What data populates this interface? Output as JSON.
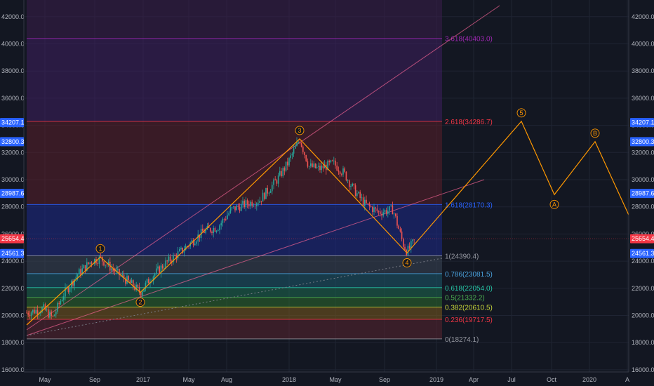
{
  "chart_data": {
    "type": "candlestick",
    "price_axis": {
      "min": 16000,
      "max": 43000,
      "step": 2000,
      "tick_labels": [
        "16000.0",
        "18000.0",
        "20000.0",
        "22000.0",
        "24000.0",
        "26000.0",
        "28000.0",
        "30000.0",
        "32000.0",
        "34000.0",
        "36000.0",
        "38000.0",
        "40000.0",
        "42000.0"
      ]
    },
    "time_axis": {
      "tick_labels": [
        "May",
        "Sep",
        "2017",
        "May",
        "Aug",
        "2018",
        "May",
        "Sep",
        "2019",
        "Apr",
        "Jul",
        "Oct",
        "2020",
        "A"
      ]
    },
    "fib_levels": [
      {
        "ratio": "0",
        "price": 18274.1,
        "label": "0(18274.1)",
        "color": "#9598a1",
        "fill": "#5a2430"
      },
      {
        "ratio": "0.236",
        "price": 19717.5,
        "label": "0.236(19717.5)",
        "color": "#f23645",
        "fill": "#7a5a1e"
      },
      {
        "ratio": "0.382",
        "price": 20610.5,
        "label": "0.382(20610.5)",
        "color": "#c8d63a",
        "fill": "#2e6b2e"
      },
      {
        "ratio": "0.5",
        "price": 21332.2,
        "label": "0.5(21332.2)",
        "color": "#4caf50",
        "fill": "#1d6b50"
      },
      {
        "ratio": "0.618",
        "price": 22054.0,
        "label": "0.618(22054.0)",
        "color": "#26c6a6",
        "fill": "#1e5a6b"
      },
      {
        "ratio": "0.786",
        "price": 23081.5,
        "label": "0.786(23081.5)",
        "color": "#4aa3df",
        "fill": "#3a4555"
      },
      {
        "ratio": "1",
        "price": 24390.4,
        "label": "1(24390.4)",
        "color": "#9598a1",
        "fill": "#1e2a8a"
      },
      {
        "ratio": "1.618",
        "price": 28170.3,
        "label": "1.618(28170.3)",
        "color": "#2962ff",
        "fill": "#5a1f2a"
      },
      {
        "ratio": "2.618",
        "price": 34286.7,
        "label": "2.618(34286.7)",
        "color": "#f23645",
        "fill": "#3e1f5e"
      },
      {
        "ratio": "3.618",
        "price": 40403.0,
        "label": "3.618(40403.0)",
        "color": "#9c27b0",
        "fill": "#3b1e4a"
      }
    ],
    "price_tags": [
      {
        "label": "34207.1",
        "price": 34207.1,
        "color": "#2962ff"
      },
      {
        "label": "32800.3",
        "price": 32800.3,
        "color": "#2962ff"
      },
      {
        "label": "28987.6",
        "price": 28987.6,
        "color": "#2962ff"
      },
      {
        "label": "25654.4",
        "price": 25654.4,
        "color": "#f23645"
      },
      {
        "label": "24561.3",
        "price": 24561.3,
        "color": "#2962ff"
      }
    ],
    "waves": [
      {
        "label": "1",
        "price": 24300
      },
      {
        "label": "2",
        "price": 21700
      },
      {
        "label": "3",
        "price": 33000
      },
      {
        "label": "4",
        "price": 24600
      },
      {
        "label": "5",
        "price": 34300
      },
      {
        "label": "A",
        "price": 28900
      },
      {
        "label": "B",
        "price": 32800
      }
    ],
    "colors": {
      "up": "#26a69a",
      "down": "#ef5350",
      "wave_line": "#ff9800",
      "background": "#131722",
      "grid": "#1f2433"
    }
  }
}
